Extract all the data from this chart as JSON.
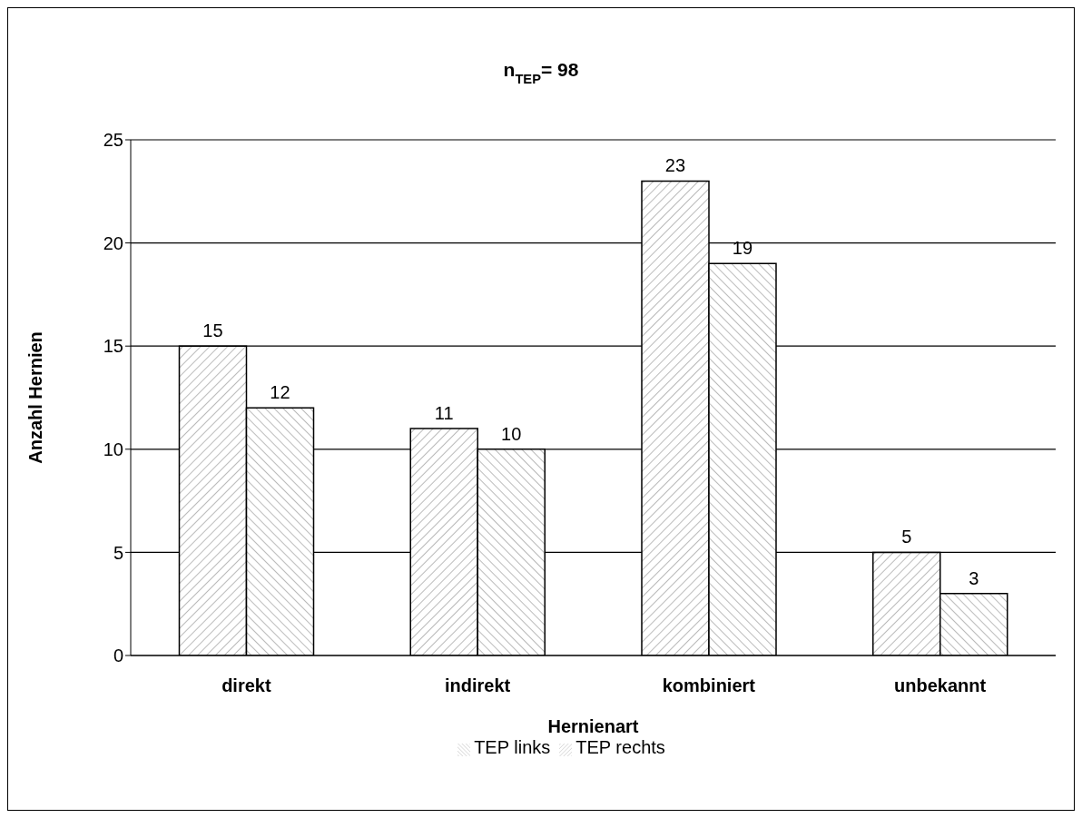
{
  "chart_data": {
    "type": "bar",
    "title": "n$_{TEP}$= 98",
    "xlabel": "Hernienart",
    "ylabel": "Anzahl Hernien",
    "categories": [
      "direkt",
      "indirekt",
      "kombiniert",
      "unbekannt"
    ],
    "series": [
      {
        "name": "TEP rechts",
        "color": "#000000",
        "values": [
          15,
          11,
          23,
          5
        ]
      },
      {
        "name": "TEP links",
        "color": "#000000",
        "values": [
          12,
          10,
          19,
          3
        ]
      }
    ],
    "ylim": [
      0,
      25
    ],
    "yticks": [
      0,
      5,
      10,
      15,
      20,
      25
    ],
    "grid": "y",
    "legend": "bottom",
    "data_labels": true
  }
}
